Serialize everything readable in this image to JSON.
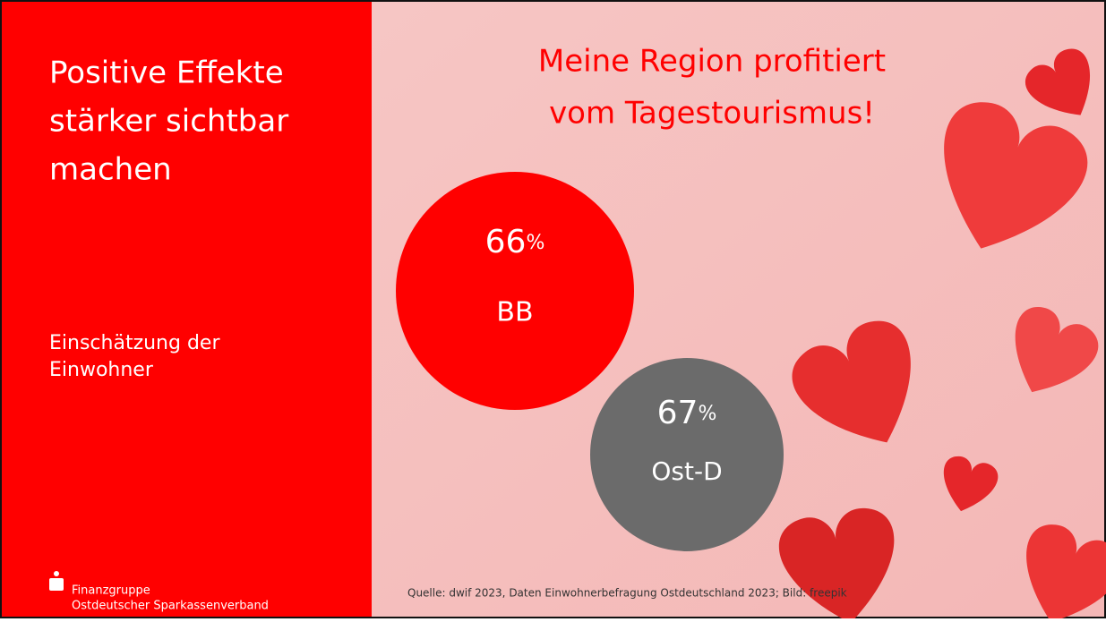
{
  "sidebar": {
    "title_lines": [
      "Positive Effekte",
      "stärker sichtbar",
      "machen"
    ],
    "subtitle_lines": [
      "Einschätzung der",
      "Einwohner"
    ],
    "logo_lines": [
      "Finanzgruppe",
      "Ostdeutscher Sparkassenverband"
    ]
  },
  "main": {
    "title_lines": [
      "Meine Region profitiert",
      "vom Tagestourismus!"
    ],
    "circles": [
      {
        "value": "66",
        "unit": "%",
        "label": "BB"
      },
      {
        "value": "67",
        "unit": "%",
        "label": "Ost-D"
      }
    ],
    "source": "Quelle: dwif 2023, Daten Einwohnerbefragung Ostdeutschland 2023; Bild: freepik"
  }
}
